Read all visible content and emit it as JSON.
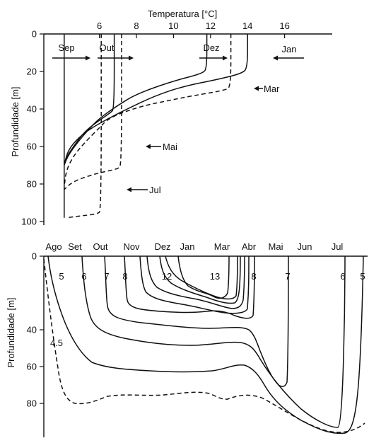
{
  "chart_data": [
    {
      "type": "line",
      "title": "",
      "xlabel": "Temperatura [°C]",
      "ylabel": "Profundidade [m]",
      "x_ticks": [
        6,
        8,
        10,
        12,
        14,
        16
      ],
      "y_ticks": [
        0,
        20,
        40,
        60,
        80,
        100
      ],
      "xlim": [
        3,
        16
      ],
      "ylim": [
        100,
        0
      ],
      "axis_position": "top",
      "series": [
        {
          "name": "Sep",
          "style": "solid",
          "points": [
            [
              4.1,
              0
            ],
            [
              4.1,
              98
            ]
          ]
        },
        {
          "name": "Out",
          "style": "solid",
          "points": [
            [
              6.8,
              0
            ],
            [
              6.8,
              40
            ],
            [
              6.6,
              42
            ],
            [
              6,
              46
            ],
            [
              5.2,
              52
            ],
            [
              4.6,
              60
            ],
            [
              4.2,
              66
            ],
            [
              4.1,
              70
            ]
          ]
        },
        {
          "name": "Dez",
          "style": "solid",
          "points": [
            [
              11.8,
              0
            ],
            [
              11.8,
              18
            ],
            [
              11.6,
              21
            ],
            [
              10,
              25
            ],
            [
              8,
              32
            ],
            [
              7,
              38
            ],
            [
              6,
              45
            ],
            [
              5.5,
              50
            ],
            [
              4.8,
              58
            ],
            [
              4.3,
              65
            ],
            [
              4.1,
              70
            ]
          ]
        },
        {
          "name": "Jan",
          "style": "solid",
          "points": [
            [
              14,
              0
            ],
            [
              14,
              18
            ],
            [
              13.7,
              21
            ],
            [
              12.5,
              24
            ],
            [
              10.5,
              28
            ],
            [
              9,
              33
            ],
            [
              7.5,
              40
            ],
            [
              6.5,
              45
            ],
            [
              5.6,
              50
            ],
            [
              4.9,
              55
            ],
            [
              4.3,
              62
            ],
            [
              4.1,
              70
            ]
          ]
        },
        {
          "name": "Mar",
          "style": "dashed",
          "points": [
            [
              13.1,
              0
            ],
            [
              13.1,
              28
            ],
            [
              12.8,
              30
            ],
            [
              11,
              33
            ],
            [
              9.5,
              36
            ],
            [
              8.5,
              38
            ],
            [
              7.5,
              41
            ],
            [
              6.5,
              45
            ],
            [
              6,
              50
            ],
            [
              5.2,
              58
            ],
            [
              4.6,
              65
            ],
            [
              4.2,
              73
            ],
            [
              4.1,
              82
            ]
          ]
        },
        {
          "name": "Mai",
          "style": "dashed",
          "points": [
            [
              7.2,
              0
            ],
            [
              7.2,
              70
            ],
            [
              7,
              72
            ],
            [
              6,
              74
            ],
            [
              5,
              77
            ],
            [
              4.4,
              80
            ],
            [
              4.1,
              83
            ]
          ]
        },
        {
          "name": "Jul",
          "style": "dashed",
          "points": [
            [
              6.1,
              0
            ],
            [
              6.1,
              94
            ],
            [
              5.9,
              96
            ],
            [
              5,
              97
            ],
            [
              4.2,
              98
            ]
          ]
        }
      ],
      "profile_labels": [
        "Sep",
        "Out",
        "Dez",
        "Jan",
        "Mar",
        "Mai",
        "Jul"
      ]
    },
    {
      "type": "line",
      "title": "",
      "xlabel": "",
      "ylabel": "Profundidade [m]",
      "months": [
        "Ago",
        "Set",
        "Out",
        "Nov",
        "Dez",
        "Jan",
        "Mar",
        "Abr",
        "Mai",
        "Jun",
        "Jul"
      ],
      "y_ticks": [
        0,
        40,
        60,
        80
      ],
      "ylim": [
        95,
        0
      ],
      "isotherm_labels": [
        "4.5",
        "5",
        "6",
        "7",
        "8",
        "12",
        "13",
        "8",
        "7",
        "6",
        "5"
      ],
      "isotherms": [
        {
          "value": "4.5",
          "style": "dashed"
        },
        {
          "value": "5",
          "style": "solid"
        },
        {
          "value": "6",
          "style": "solid"
        },
        {
          "value": "7",
          "style": "solid"
        },
        {
          "value": "8",
          "style": "solid"
        },
        {
          "value": "12",
          "style": "solid"
        },
        {
          "value": "13",
          "style": "solid"
        }
      ]
    }
  ]
}
